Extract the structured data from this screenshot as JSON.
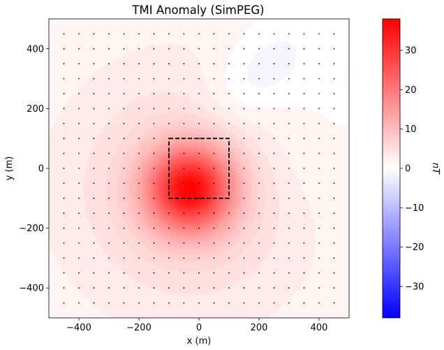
{
  "chart_data": {
    "type": "heatmap",
    "title": "TMI Anomaly (SimPEG)",
    "xlabel": "x (m)",
    "ylabel": "y (m)",
    "xlim": [
      -500,
      500
    ],
    "ylim": [
      -500,
      500
    ],
    "xticks": [
      {
        "value": -400,
        "label": "−400"
      },
      {
        "value": -200,
        "label": "−200"
      },
      {
        "value": 0,
        "label": "0"
      },
      {
        "value": 200,
        "label": "200"
      },
      {
        "value": 400,
        "label": "400"
      }
    ],
    "yticks": [
      {
        "value": -400,
        "label": "−400"
      },
      {
        "value": -200,
        "label": "−200"
      },
      {
        "value": 0,
        "label": "0"
      },
      {
        "value": 200,
        "label": "200"
      },
      {
        "value": 400,
        "label": "400"
      }
    ],
    "colormap": "bwr",
    "colormap_colors": [
      "#0000ff",
      "#ffffff",
      "#ff0000"
    ],
    "vmin": -38,
    "vmax": 38,
    "colorbar_label": "nT",
    "colorbar_ticks": [
      {
        "value": -30,
        "label": "−30"
      },
      {
        "value": -20,
        "label": "−20"
      },
      {
        "value": -10,
        "label": "−10"
      },
      {
        "value": 0,
        "label": "0"
      },
      {
        "value": 10,
        "label": "10"
      },
      {
        "value": 20,
        "label": "20"
      },
      {
        "value": 30,
        "label": "30"
      }
    ],
    "anomaly_positive": {
      "x": -30,
      "y": -70,
      "peak": 38
    },
    "anomaly_negative": {
      "x": 200,
      "y": 320,
      "min": -3
    },
    "prism_outline": {
      "x": [
        -100,
        100
      ],
      "y": [
        -100,
        100
      ],
      "style": "dashed"
    },
    "receiver_grid": {
      "x_min": -450,
      "x_max": 450,
      "y_min": -450,
      "y_max": 450,
      "spacing": 50
    }
  }
}
